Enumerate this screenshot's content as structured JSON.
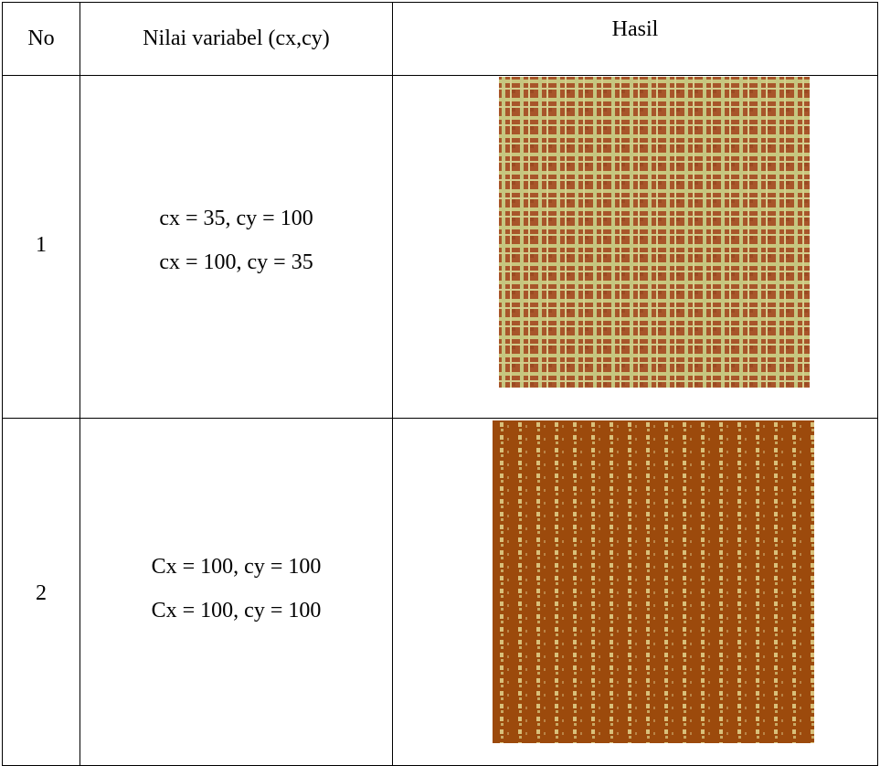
{
  "table": {
    "header": [
      "No",
      "Nilai variabel (cx,cy)",
      "Hasil"
    ],
    "rows": [
      {
        "no": "1",
        "lines": [
          "cx = 35, cy = 100",
          "cx = 100, cy = 35"
        ]
      },
      {
        "no": "2",
        "lines": [
          "Cx = 100, cy = 100",
          "Cx = 100, cy = 100"
        ]
      }
    ]
  }
}
